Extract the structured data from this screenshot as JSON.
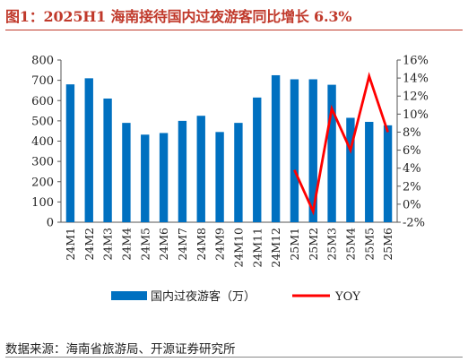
{
  "title": "图1：2025H1 海南接待国内过夜游客同比增长 6.3%",
  "source": "数据来源：海南省旅游局、开源证券研究所",
  "chart_data": {
    "type": "bar",
    "categories": [
      "24M1",
      "24M2",
      "24M3",
      "24M4",
      "24M5",
      "24M6",
      "24M7",
      "24M8",
      "24M9",
      "24M10",
      "24M11",
      "24M12",
      "25M1",
      "25M2",
      "25M3",
      "25M4",
      "25M5",
      "25M6"
    ],
    "series": [
      {
        "name": "国内过夜游客（万）",
        "type": "bar",
        "axis": "left",
        "color": "#0070c0",
        "values": [
          680,
          710,
          610,
          490,
          432,
          440,
          500,
          525,
          445,
          490,
          615,
          725,
          705,
          705,
          678,
          515,
          495,
          478
        ]
      },
      {
        "name": "YOY",
        "type": "line",
        "axis": "right",
        "color": "#ff0000",
        "values": [
          null,
          null,
          null,
          null,
          null,
          null,
          null,
          null,
          null,
          null,
          null,
          null,
          3.8,
          -0.8,
          10.6,
          6.0,
          14.2,
          8.0
        ]
      }
    ],
    "left_axis": {
      "min": 0,
      "max": 800,
      "step": 100,
      "ticks": [
        "0",
        "100",
        "200",
        "300",
        "400",
        "500",
        "600",
        "700",
        "800"
      ]
    },
    "right_axis": {
      "min": -2,
      "max": 16,
      "step": 2,
      "ticks": [
        "-2%",
        "0%",
        "2%",
        "4%",
        "6%",
        "8%",
        "10%",
        "12%",
        "14%",
        "16%"
      ]
    },
    "legend_position": "bottom",
    "grid": false
  }
}
